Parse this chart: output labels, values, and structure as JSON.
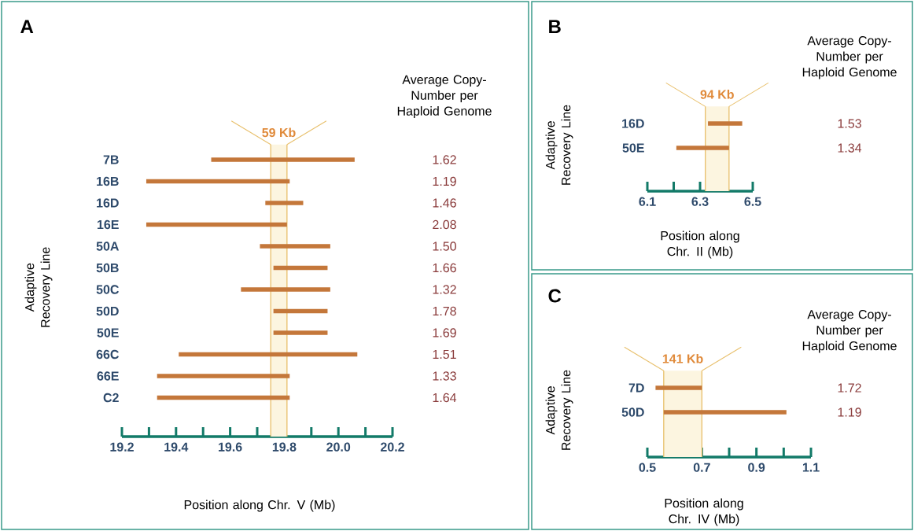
{
  "chart_data": [
    {
      "type": "bar",
      "orientation": "horizontal",
      "title": "A",
      "ylabel": "Adaptive Recovery Line",
      "xlabel": "Position along Chr. V (Mb)",
      "color": "#c4773a",
      "categories": [
        "7B",
        "16B",
        "16D",
        "16E",
        "50A",
        "50B",
        "50C",
        "50D",
        "50E",
        "66C",
        "66E",
        "C2"
      ],
      "base": [
        19.53,
        19.29,
        19.73,
        19.29,
        19.71,
        19.76,
        19.64,
        19.76,
        19.76,
        19.41,
        19.33,
        19.33
      ],
      "values": [
        0.53,
        0.53,
        0.14,
        0.52,
        0.26,
        0.2,
        0.33,
        0.2,
        0.2,
        0.66,
        0.49,
        0.49
      ],
      "xlim": [
        19.2,
        20.2
      ],
      "xticks": [
        19.2,
        {
          "value": 19.3,
          "label": null
        },
        19.4,
        {
          "value": 19.5,
          "label": null
        },
        19.6,
        {
          "value": 19.7,
          "label": null
        },
        19.8,
        {
          "value": 19.9,
          "label": null
        },
        {
          "value": 20,
          "label": "20.0"
        },
        {
          "value": 20.1,
          "label": null
        },
        20.2
      ],
      "bands": [
        {
          "axis": "x",
          "from": 19.75,
          "to": 19.81,
          "label": "59 Kb",
          "color": "#fcf5e0"
        }
      ],
      "ref_lines": [
        {
          "axis": "x",
          "value": 19.75,
          "color": "#e8bf6a"
        },
        {
          "axis": "x",
          "value": 19.81,
          "color": "#e8bf6a"
        }
      ],
      "annotations": [
        "Average Copy-Number per Haploid Genome",
        "1.62",
        "1.19",
        "1.46",
        "2.08",
        "1.50",
        "1.66",
        "1.32",
        "1.78",
        "1.69",
        "1.51",
        "1.33",
        "1.64"
      ]
    },
    {
      "type": "bar",
      "orientation": "horizontal",
      "title": "B",
      "ylabel": "Adaptive Recovery Line",
      "xlabel": "Position along Chr. II (Mb)",
      "color": "#c4773a",
      "categories": [
        "16D",
        "50E"
      ],
      "base": [
        6.33,
        6.21
      ],
      "values": [
        0.13,
        0.2
      ],
      "xlim": [
        6.1,
        6.5
      ],
      "xticks": [
        6.1,
        {
          "value": 6.2,
          "label": null
        },
        6.3,
        {
          "value": 6.4,
          "label": null
        },
        6.5
      ],
      "bands": [
        {
          "axis": "x",
          "from": 6.32,
          "to": 6.41,
          "label": "94 Kb",
          "color": "#fcf5e0"
        }
      ],
      "ref_lines": [
        {
          "axis": "x",
          "value": 6.32,
          "color": "#e8bf6a"
        },
        {
          "axis": "x",
          "value": 6.41,
          "color": "#e8bf6a"
        }
      ],
      "annotations": [
        "Average Copy-Number per Haploid Genome",
        "1.53",
        "1.34"
      ]
    },
    {
      "type": "bar",
      "orientation": "horizontal",
      "title": "C",
      "ylabel": "Adaptive Recovery Line",
      "xlabel": "Position along Chr. IV (Mb)",
      "color": "#c4773a",
      "categories": [
        "7D",
        "50D"
      ],
      "base": [
        0.53,
        0.56
      ],
      "values": [
        0.17,
        0.45
      ],
      "xlim": [
        0.5,
        1.1
      ],
      "xticks": [
        0.5,
        {
          "value": 0.6,
          "label": null
        },
        0.7,
        {
          "value": 0.8,
          "label": null
        },
        0.9,
        {
          "value": 1.0,
          "label": null
        },
        1.1
      ],
      "bands": [
        {
          "axis": "x",
          "from": 0.56,
          "to": 0.7,
          "label": "141 Kb",
          "color": "#fcf5e0"
        }
      ],
      "ref_lines": [
        {
          "axis": "x",
          "value": 0.56,
          "color": "#e8bf6a"
        },
        {
          "axis": "x",
          "value": 0.7,
          "color": "#e8bf6a"
        }
      ],
      "annotations": [
        "Average Copy-Number per Haploid Genome",
        "1.72",
        "1.19"
      ]
    }
  ]
}
